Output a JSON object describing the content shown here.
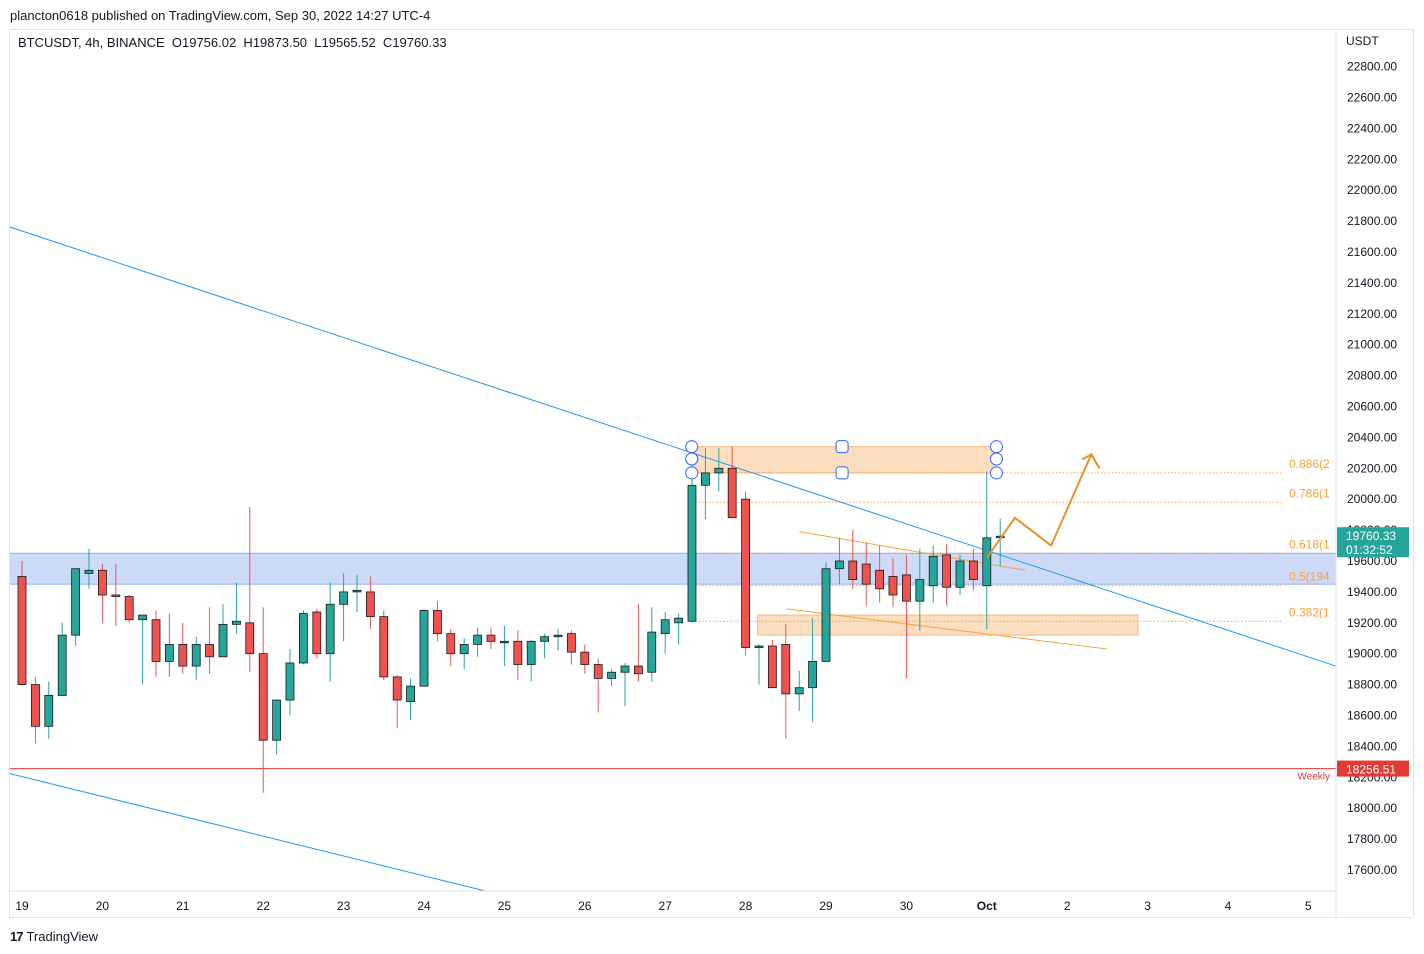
{
  "header": {
    "published_line": "plancton0618 published on TradingView.com, Sep 30, 2022 14:27 UTC-4"
  },
  "legend": {
    "text": "BTCUSDT, 4h, BINANCE  O19756.02  H19873.50  L19565.52  C19760.33"
  },
  "footer": {
    "brand_label": "TradingView",
    "logo_glyph": "17"
  },
  "colors": {
    "up": "#26a69a",
    "down": "#ef5350",
    "trendline": "#2196f3",
    "zone_blue": "#c9d8f7",
    "zone_orange": "#fad7b5",
    "fib": "#f7a23c",
    "weekly": "#e53935",
    "projection": "#e8912d"
  },
  "chart_data": {
    "type": "candlestick",
    "symbol": "BTCUSDT",
    "interval": "4h",
    "exchange": "BINANCE",
    "y_axis_unit": "USDT",
    "ylim": [
      17450,
      23000
    ],
    "y_ticks": [
      "17600.00",
      "17800.00",
      "18000.00",
      "18200.00",
      "18400.00",
      "18600.00",
      "18800.00",
      "19000.00",
      "19200.00",
      "19400.00",
      "19600.00",
      "19800.00",
      "20000.00",
      "20200.00",
      "20400.00",
      "20600.00",
      "20800.00",
      "21000.00",
      "21200.00",
      "21400.00",
      "21600.00",
      "21800.00",
      "22000.00",
      "22200.00",
      "22400.00",
      "22600.00",
      "22800.00"
    ],
    "x_ticks": [
      {
        "label": "19",
        "day": 19
      },
      {
        "label": "20",
        "day": 20
      },
      {
        "label": "21",
        "day": 21
      },
      {
        "label": "22",
        "day": 22
      },
      {
        "label": "23",
        "day": 23
      },
      {
        "label": "24",
        "day": 24
      },
      {
        "label": "25",
        "day": 25
      },
      {
        "label": "26",
        "day": 26
      },
      {
        "label": "27",
        "day": 27
      },
      {
        "label": "28",
        "day": 28
      },
      {
        "label": "29",
        "day": 29
      },
      {
        "label": "30",
        "day": 30
      },
      {
        "label": "Oct",
        "day": 31
      },
      {
        "label": "2",
        "day": 32
      },
      {
        "label": "3",
        "day": 33
      },
      {
        "label": "4",
        "day": 34
      },
      {
        "label": "5",
        "day": 35
      }
    ],
    "candles": [
      [
        19.0,
        19500,
        19600,
        18800,
        18800
      ],
      [
        19.167,
        18800,
        18850,
        18420,
        18530
      ],
      [
        19.333,
        18530,
        18820,
        18450,
        18730
      ],
      [
        19.5,
        18730,
        19200,
        18730,
        19120
      ],
      [
        19.667,
        19120,
        19550,
        19050,
        19550
      ],
      [
        19.833,
        19520,
        19680,
        19420,
        19540
      ],
      [
        20.0,
        19540,
        19580,
        19200,
        19380
      ],
      [
        20.167,
        19380,
        19580,
        19180,
        19370
      ],
      [
        20.333,
        19370,
        19380,
        19200,
        19220
      ],
      [
        20.5,
        19220,
        19240,
        18800,
        19250
      ],
      [
        20.667,
        19220,
        19280,
        18850,
        18950
      ],
      [
        20.833,
        18950,
        19260,
        18850,
        19060
      ],
      [
        21.0,
        19060,
        19200,
        18870,
        18920
      ],
      [
        21.167,
        18920,
        19110,
        18830,
        19060
      ],
      [
        21.333,
        19060,
        19300,
        18870,
        18980
      ],
      [
        21.5,
        18980,
        19320,
        18980,
        19190
      ],
      [
        21.667,
        19190,
        19460,
        19130,
        19210
      ],
      [
        21.833,
        19200,
        19950,
        18880,
        19000
      ],
      [
        22.0,
        19000,
        19300,
        18100,
        18440
      ],
      [
        22.167,
        18440,
        18700,
        18350,
        18700
      ],
      [
        22.333,
        18700,
        19030,
        18600,
        18940
      ],
      [
        22.5,
        18940,
        19280,
        18930,
        19260
      ],
      [
        22.667,
        19270,
        19290,
        18970,
        19000
      ],
      [
        22.833,
        19000,
        19460,
        18820,
        19320
      ],
      [
        23.0,
        19320,
        19520,
        19080,
        19400
      ],
      [
        23.167,
        19400,
        19510,
        19270,
        19410
      ],
      [
        23.333,
        19400,
        19500,
        19160,
        19240
      ],
      [
        23.5,
        19240,
        19280,
        18830,
        18850
      ],
      [
        23.667,
        18850,
        18860,
        18520,
        18700
      ],
      [
        23.833,
        18690,
        18840,
        18570,
        18790
      ],
      [
        24.0,
        18790,
        19290,
        18790,
        19280
      ],
      [
        24.167,
        19280,
        19340,
        19080,
        19130
      ],
      [
        24.333,
        19130,
        19160,
        18920,
        19000
      ],
      [
        24.5,
        19000,
        19100,
        18900,
        19060
      ],
      [
        24.667,
        19060,
        19170,
        18980,
        19120
      ],
      [
        24.833,
        19120,
        19170,
        19030,
        19080
      ],
      [
        25.0,
        19080,
        19180,
        18920,
        19080
      ],
      [
        25.167,
        19080,
        19150,
        18830,
        18930
      ],
      [
        25.333,
        18930,
        19090,
        18820,
        19080
      ],
      [
        25.5,
        19080,
        19130,
        18970,
        19110
      ],
      [
        25.667,
        19110,
        19160,
        19020,
        19120
      ],
      [
        25.833,
        19130,
        19150,
        18930,
        19010
      ],
      [
        26.0,
        19010,
        19060,
        18870,
        18930
      ],
      [
        26.167,
        18930,
        18970,
        18620,
        18840
      ],
      [
        26.333,
        18840,
        18900,
        18790,
        18880
      ],
      [
        26.5,
        18880,
        18940,
        18660,
        18920
      ],
      [
        26.667,
        18920,
        19320,
        18820,
        18870
      ],
      [
        26.833,
        18880,
        19300,
        18820,
        19140
      ],
      [
        27.0,
        19130,
        19270,
        19000,
        19220
      ],
      [
        27.167,
        19200,
        19260,
        19060,
        19230
      ],
      [
        27.333,
        19210,
        20330,
        19200,
        20090
      ],
      [
        27.5,
        20090,
        20330,
        19870,
        20170
      ],
      [
        27.667,
        20170,
        20330,
        20050,
        20200
      ],
      [
        27.833,
        20200,
        20340,
        19900,
        19880
      ],
      [
        28.0,
        20000,
        20050,
        18990,
        19040
      ],
      [
        28.167,
        19040,
        19060,
        18800,
        19050
      ],
      [
        28.333,
        19050,
        19090,
        18800,
        18780
      ],
      [
        28.5,
        19060,
        19190,
        18450,
        18740
      ],
      [
        28.667,
        18740,
        18890,
        18630,
        18780
      ],
      [
        28.833,
        18780,
        19230,
        18560,
        18950
      ],
      [
        29.0,
        18950,
        19590,
        18950,
        19550
      ],
      [
        29.167,
        19550,
        19750,
        19450,
        19600
      ],
      [
        29.333,
        19600,
        19800,
        19420,
        19480
      ],
      [
        29.5,
        19580,
        19720,
        19310,
        19450
      ],
      [
        29.667,
        19540,
        19700,
        19330,
        19420
      ],
      [
        29.833,
        19500,
        19620,
        19300,
        19380
      ],
      [
        30.0,
        19510,
        19640,
        18840,
        19340
      ],
      [
        30.167,
        19340,
        19680,
        19150,
        19480
      ],
      [
        30.333,
        19440,
        19700,
        19330,
        19630
      ],
      [
        30.5,
        19640,
        19710,
        19310,
        19430
      ],
      [
        30.667,
        19430,
        19640,
        19380,
        19600
      ],
      [
        30.833,
        19600,
        19680,
        19410,
        19480
      ],
      [
        31.0,
        19440,
        20180,
        19160,
        19750
      ],
      [
        31.167,
        19756.02,
        19873.5,
        19565.52,
        19760.33
      ]
    ],
    "trendlines": [
      {
        "role": "descending-resistance",
        "from": [
          18.8,
          21770
        ],
        "to": [
          35.4,
          18910
        ]
      },
      {
        "role": "channel-lower",
        "from": [
          18.8,
          18230
        ],
        "to": [
          24.95,
          17440
        ]
      }
    ],
    "zones": [
      {
        "role": "support-resistance",
        "x": [
          18.8,
          35.4
        ],
        "y": [
          19450,
          19650
        ]
      },
      {
        "role": "supply",
        "x": [
          27.33,
          31.12
        ],
        "y": [
          20170,
          20340
        ]
      },
      {
        "role": "demand",
        "x": [
          28.15,
          32.88
        ],
        "y": [
          19120,
          19250
        ]
      }
    ],
    "wedge": [
      {
        "from": [
          28.67,
          19790
        ],
        "to": [
          31.48,
          19540
        ]
      },
      {
        "from": [
          28.51,
          19290
        ],
        "to": [
          32.5,
          19030
        ]
      }
    ],
    "fib_levels": [
      {
        "label": "0.886(2",
        "price": 20170
      },
      {
        "label": "0.786(1",
        "price": 19980
      },
      {
        "label": "0.618(1",
        "price": 19650
      },
      {
        "label": "0.5(194",
        "price": 19440
      },
      {
        "label": "0.382(1",
        "price": 19210
      }
    ],
    "fib_x_start": 27.33,
    "projection_path": [
      [
        31.0,
        19620
      ],
      [
        31.35,
        19880
      ],
      [
        31.8,
        19700
      ],
      [
        32.3,
        20290
      ],
      [
        32.4,
        20200
      ]
    ],
    "handles": [
      [
        27.33,
        20340
      ],
      [
        27.33,
        20260
      ],
      [
        27.33,
        20170
      ],
      [
        29.2,
        20340
      ],
      [
        29.2,
        20170
      ],
      [
        31.12,
        20340
      ],
      [
        31.12,
        20260
      ],
      [
        31.12,
        20170
      ]
    ],
    "weekly_level": {
      "label": "Weekly",
      "price": 18256.51,
      "price_label": "18256.51"
    },
    "last_price": {
      "price_label": "19760.33",
      "countdown": "01:32:52",
      "price": 19760.33
    }
  }
}
